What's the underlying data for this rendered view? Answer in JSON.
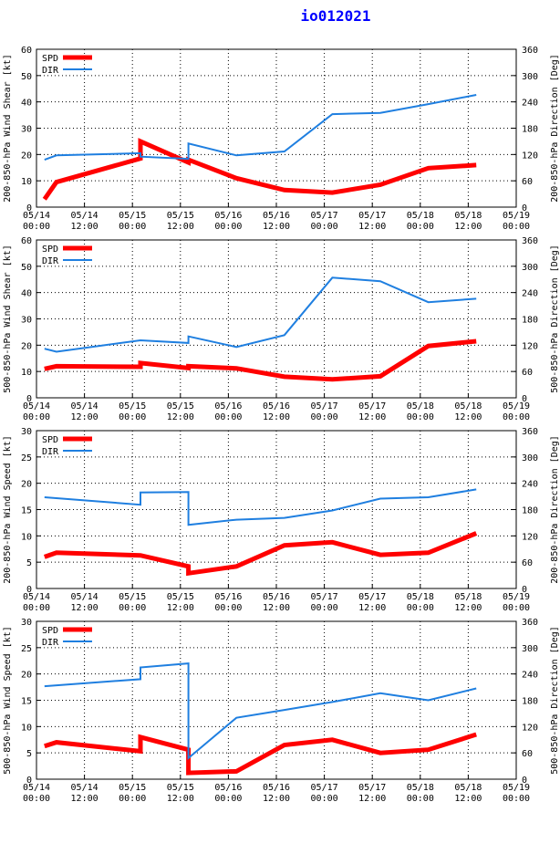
{
  "title": "io012021",
  "colors": {
    "spd": "#ff0000",
    "dir": "#1f7fe0",
    "axis": "#000000",
    "grid": "#000000",
    "title": "#0000ff"
  },
  "chart_data": [
    {
      "type": "line",
      "ylabel_left": "200-850-hPa Wind Shear [kt]",
      "ylabel_right": "200-850-hPa Direction [Deg]",
      "ylim_left": [
        0,
        60
      ],
      "yticks_left": [
        "0",
        "10",
        "20",
        "30",
        "40",
        "50",
        "60"
      ],
      "ylim_right": [
        0,
        360
      ],
      "yticks_right": [
        "0",
        "60",
        "120",
        "180",
        "240",
        "300",
        "360"
      ],
      "xlim_hours": [
        0,
        120
      ],
      "xtick_dates": [
        "05/14",
        "05/14",
        "05/15",
        "05/15",
        "05/16",
        "05/16",
        "05/17",
        "05/17",
        "05/18",
        "05/18",
        "05/19"
      ],
      "xtick_times": [
        "00:00",
        "12:00",
        "00:00",
        "12:00",
        "00:00",
        "12:00",
        "00:00",
        "12:00",
        "00:00",
        "12:00",
        "00:00"
      ],
      "legend": [
        "SPD",
        "DIR"
      ],
      "series": [
        {
          "name": "SPD",
          "axis": "left",
          "x": [
            2,
            5,
            26,
            26,
            38,
            38,
            50,
            62,
            74,
            86,
            98,
            110
          ],
          "y": [
            3,
            9.5,
            18.5,
            25,
            17,
            18,
            11,
            6.5,
            5.5,
            8.5,
            14.8,
            16
          ]
        },
        {
          "name": "DIR",
          "axis": "right",
          "x": [
            2,
            5,
            26,
            26,
            38,
            38,
            50,
            62,
            74,
            86,
            98,
            110
          ],
          "y": [
            108,
            118,
            123,
            115,
            110,
            145,
            118,
            127,
            212,
            215,
            235,
            256
          ]
        }
      ]
    },
    {
      "type": "line",
      "ylabel_left": "500-850-hPa Wind Shear [kt]",
      "ylabel_right": "500-850-hPa Direction [Deg]",
      "ylim_left": [
        0,
        60
      ],
      "yticks_left": [
        "0",
        "10",
        "20",
        "30",
        "40",
        "50",
        "60"
      ],
      "ylim_right": [
        0,
        360
      ],
      "yticks_right": [
        "0",
        "60",
        "120",
        "180",
        "240",
        "300",
        "360"
      ],
      "xlim_hours": [
        0,
        120
      ],
      "xtick_dates": [
        "05/14",
        "05/14",
        "05/15",
        "05/15",
        "05/16",
        "05/16",
        "05/17",
        "05/17",
        "05/18",
        "05/18",
        "05/19"
      ],
      "xtick_times": [
        "00:00",
        "12:00",
        "00:00",
        "12:00",
        "00:00",
        "12:00",
        "00:00",
        "12:00",
        "00:00",
        "12:00",
        "00:00"
      ],
      "legend": [
        "SPD",
        "DIR"
      ],
      "series": [
        {
          "name": "SPD",
          "axis": "left",
          "x": [
            2,
            5,
            26,
            26,
            38,
            38,
            50,
            62,
            74,
            86,
            98,
            110
          ],
          "y": [
            11,
            12,
            11.8,
            13.2,
            11.3,
            12,
            11.2,
            8,
            7,
            8.2,
            19.7,
            21.5
          ]
        },
        {
          "name": "DIR",
          "axis": "right",
          "x": [
            2,
            5,
            26,
            26,
            38,
            38,
            50,
            62,
            74,
            86,
            98,
            110
          ],
          "y": [
            112,
            105,
            131,
            131,
            125,
            140,
            116,
            143,
            274,
            266,
            218,
            226
          ]
        }
      ]
    },
    {
      "type": "line",
      "ylabel_left": "200-850-hPa Wind Speed [kt]",
      "ylabel_right": "200-850-hPa Direction [Deg]",
      "ylim_left": [
        0,
        30
      ],
      "yticks_left": [
        "0",
        "5",
        "10",
        "15",
        "20",
        "25",
        "30"
      ],
      "ylim_right": [
        0,
        360
      ],
      "yticks_right": [
        "0",
        "60",
        "120",
        "180",
        "240",
        "300",
        "360"
      ],
      "xlim_hours": [
        0,
        120
      ],
      "xtick_dates": [
        "05/14",
        "05/14",
        "05/15",
        "05/15",
        "05/16",
        "05/16",
        "05/17",
        "05/17",
        "05/18",
        "05/18",
        "05/19"
      ],
      "xtick_times": [
        "00:00",
        "12:00",
        "00:00",
        "12:00",
        "00:00",
        "12:00",
        "00:00",
        "12:00",
        "00:00",
        "12:00",
        "00:00"
      ],
      "legend": [
        "SPD",
        "DIR"
      ],
      "series": [
        {
          "name": "SPD",
          "axis": "left",
          "x": [
            2,
            5,
            26,
            38,
            38,
            50,
            62,
            74,
            86,
            98,
            110
          ],
          "y": [
            6,
            6.8,
            6.3,
            4.2,
            2.9,
            4.2,
            8.2,
            8.8,
            6.4,
            6.8,
            10.5
          ]
        },
        {
          "name": "DIR",
          "axis": "right",
          "x": [
            2,
            26,
            26,
            38,
            38,
            50,
            62,
            74,
            86,
            98,
            110
          ],
          "y": [
            208,
            191,
            219,
            220,
            145,
            157,
            161,
            178,
            205,
            208,
            226
          ]
        }
      ]
    },
    {
      "type": "line",
      "ylabel_left": "500-850-hPa Wind Speed [kt]",
      "ylabel_right": "500-850-hPa Direction [Deg]",
      "ylim_left": [
        0,
        30
      ],
      "yticks_left": [
        "0",
        "5",
        "10",
        "15",
        "20",
        "25",
        "30"
      ],
      "ylim_right": [
        0,
        360
      ],
      "yticks_right": [
        "0",
        "60",
        "120",
        "180",
        "240",
        "300",
        "360"
      ],
      "xlim_hours": [
        0,
        120
      ],
      "xtick_dates": [
        "05/14",
        "05/14",
        "05/15",
        "05/15",
        "05/16",
        "05/16",
        "05/17",
        "05/17",
        "05/18",
        "05/18",
        "05/19"
      ],
      "xtick_times": [
        "00:00",
        "12:00",
        "00:00",
        "12:00",
        "00:00",
        "12:00",
        "00:00",
        "12:00",
        "00:00",
        "12:00",
        "00:00"
      ],
      "legend": [
        "SPD",
        "DIR"
      ],
      "series": [
        {
          "name": "SPD",
          "axis": "left",
          "x": [
            2,
            5,
            26,
            26,
            38,
            38,
            50,
            62,
            74,
            86,
            98,
            110
          ],
          "y": [
            6.3,
            7,
            5.3,
            8,
            5.6,
            1.2,
            1.5,
            6.5,
            7.5,
            5,
            5.6,
            8.5
          ]
        },
        {
          "name": "DIR",
          "axis": "right",
          "x": [
            2,
            26,
            26,
            38,
            38,
            50,
            62,
            74,
            86,
            98,
            110
          ],
          "y": [
            212,
            228,
            255,
            264,
            48,
            140,
            158,
            176,
            196,
            180,
            207
          ]
        }
      ]
    }
  ]
}
